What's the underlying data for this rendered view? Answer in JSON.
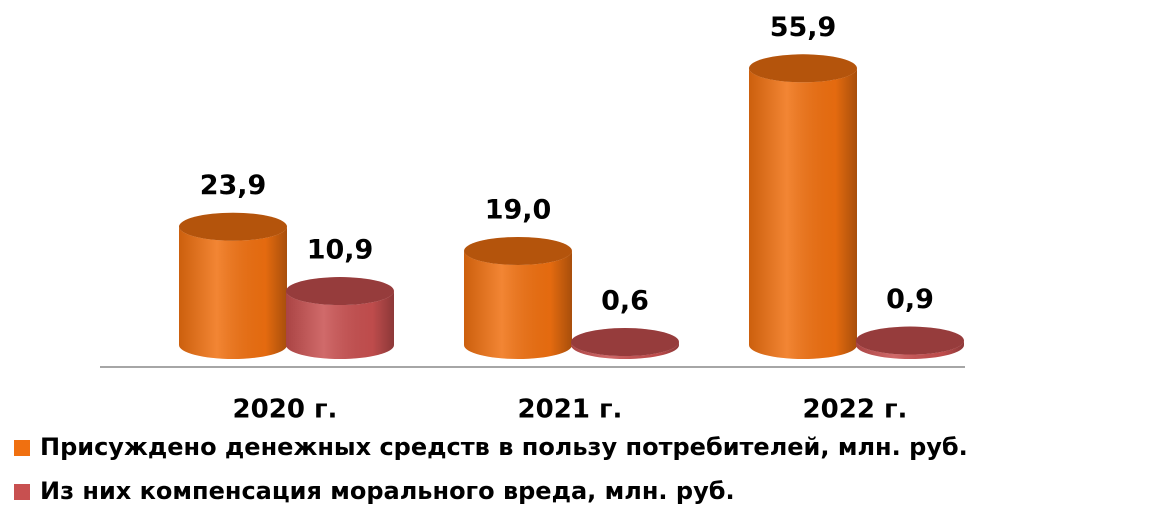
{
  "chart_data": {
    "type": "bar3d",
    "categories": [
      "2020 г.",
      "2021 г.",
      "2022 г."
    ],
    "series": [
      {
        "name": "Присуждено денежных средств в пользу потребителей, млн. руб.",
        "color": "#f07010",
        "values": [
          23.9,
          19.0,
          55.9
        ],
        "value_labels": [
          "23,9",
          "19,0",
          "55,9"
        ]
      },
      {
        "name": "Из них компенсация морального вреда, млн. руб.",
        "color": "#c85050",
        "values": [
          10.9,
          0.6,
          0.9
        ],
        "value_labels": [
          "10,9",
          "0,6",
          "0,9"
        ]
      }
    ],
    "ylim": [
      0,
      60
    ]
  }
}
